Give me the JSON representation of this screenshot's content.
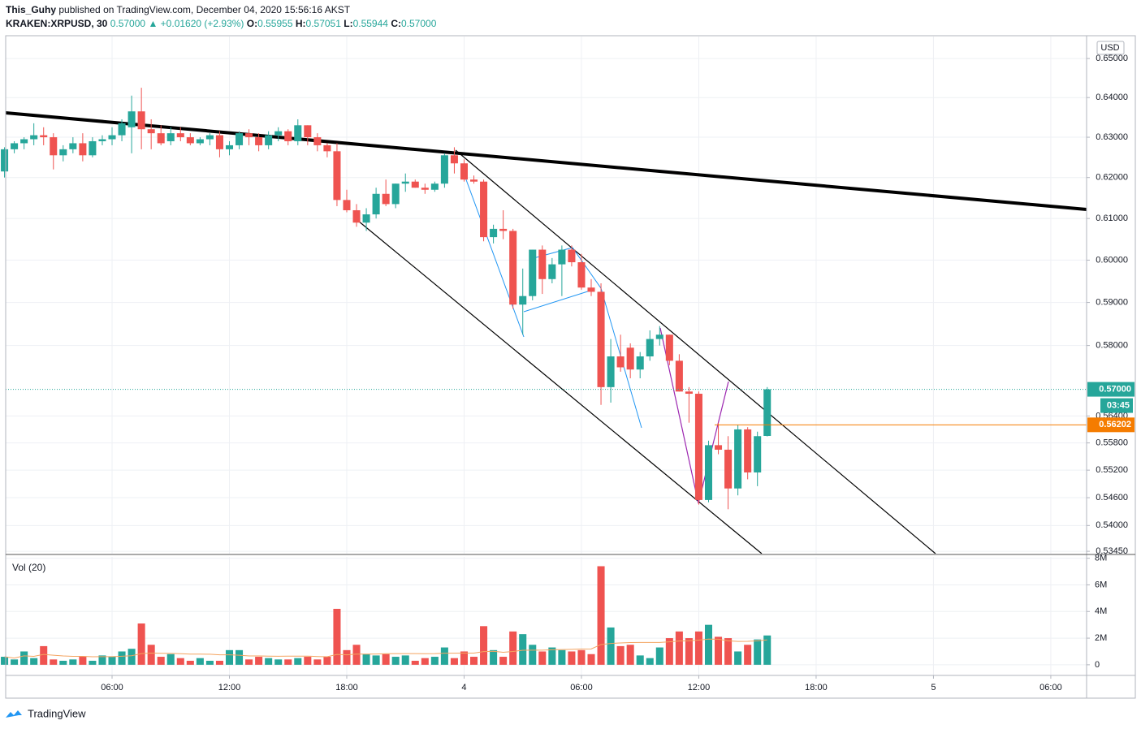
{
  "header": {
    "author": "This_Guhy",
    "published": "published on TradingView.com, December 04, 2020 15:56:16 AKST",
    "symbol": "KRAKEN:XRPUSD, 30",
    "last": "0.57000",
    "change": "+0.01620 (+2.93%)",
    "open_label": "O:",
    "open": "0.55955",
    "high_label": "H:",
    "high": "0.57051",
    "low_label": "L:",
    "low": "0.55944",
    "close_label": "C:",
    "close": "0.57000"
  },
  "footer": {
    "brand": "TradingView"
  },
  "chart_data": [
    {
      "type": "candlestick",
      "currency": "USD",
      "log_scale": true,
      "grid": true,
      "up_color": "#26a69a",
      "down_color": "#ef5350",
      "xlim": [
        0.56,
        55.83
      ],
      "ylim": [
        0.534,
        0.6557
      ],
      "xticks": [
        {
          "value": 6,
          "label": "06:00"
        },
        {
          "value": 12,
          "label": "12:00"
        },
        {
          "value": 18,
          "label": "18:00"
        },
        {
          "value": 24,
          "label": "4"
        },
        {
          "value": 30,
          "label": "06:00"
        },
        {
          "value": 36,
          "label": "12:00"
        },
        {
          "value": 42,
          "label": "18:00"
        },
        {
          "value": 48,
          "label": "5"
        },
        {
          "value": 54,
          "label": "06:00"
        }
      ],
      "yticks": [
        {
          "value": 0.65,
          "label": "0.65000"
        },
        {
          "value": 0.64,
          "label": "0.64000"
        },
        {
          "value": 0.63,
          "label": "0.63000"
        },
        {
          "value": 0.62,
          "label": "0.62000"
        },
        {
          "value": 0.61,
          "label": "0.61000"
        },
        {
          "value": 0.6,
          "label": "0.60000"
        },
        {
          "value": 0.59,
          "label": "0.59000"
        },
        {
          "value": 0.58,
          "label": "0.58000"
        },
        {
          "value": 0.564,
          "label": "0.56400"
        },
        {
          "value": 0.558,
          "label": "0.55800"
        },
        {
          "value": 0.552,
          "label": "0.55200"
        },
        {
          "value": 0.546,
          "label": "0.54600"
        },
        {
          "value": 0.54,
          "label": "0.54000"
        },
        {
          "value": 0.5345,
          "label": "0.53450"
        }
      ],
      "price_line": {
        "value": 0.57,
        "label": "0.57000",
        "color": "#26a69a"
      },
      "countdown": "03:45",
      "level_line": {
        "value": 0.56202,
        "label": "0.56202",
        "color": "#f57c00"
      },
      "x": [
        0.5,
        1,
        1.5,
        2,
        2.5,
        3,
        3.5,
        4,
        4.5,
        5,
        5.5,
        6,
        6.5,
        7,
        7.5,
        8,
        8.5,
        9,
        9.5,
        10,
        10.5,
        11,
        11.5,
        12,
        12.5,
        13,
        13.5,
        14,
        14.5,
        15,
        15.5,
        16,
        16.5,
        17,
        17.5,
        18,
        18.5,
        19,
        19.5,
        20,
        20.5,
        21,
        21.5,
        22,
        22.5,
        23,
        23.5,
        24,
        24.5,
        25,
        25.5,
        26,
        26.5,
        27,
        27.5,
        28,
        28.5,
        29,
        29.5,
        30,
        30.5,
        31,
        31.5,
        32,
        32.5,
        33,
        33.5,
        34,
        34.5,
        35,
        35.5,
        36,
        36.5,
        37,
        37.5,
        38,
        38.5,
        39,
        39.5
      ],
      "ohlc": [
        [
          0.6215,
          0.6275,
          0.62,
          0.627
        ],
        [
          0.627,
          0.629,
          0.626,
          0.6285
        ],
        [
          0.6285,
          0.63,
          0.627,
          0.6295
        ],
        [
          0.6295,
          0.6335,
          0.628,
          0.6305
        ],
        [
          0.6305,
          0.6325,
          0.628,
          0.63
        ],
        [
          0.63,
          0.631,
          0.622,
          0.6255
        ],
        [
          0.6255,
          0.628,
          0.624,
          0.627
        ],
        [
          0.627,
          0.63,
          0.626,
          0.6285
        ],
        [
          0.6285,
          0.631,
          0.624,
          0.6255
        ],
        [
          0.6255,
          0.63,
          0.625,
          0.629
        ],
        [
          0.629,
          0.6305,
          0.628,
          0.6295
        ],
        [
          0.6295,
          0.6325,
          0.628,
          0.6305
        ],
        [
          0.6305,
          0.6345,
          0.629,
          0.6335
        ],
        [
          0.6325,
          0.6405,
          0.626,
          0.6365
        ],
        [
          0.6365,
          0.6425,
          0.627,
          0.632
        ],
        [
          0.632,
          0.6345,
          0.627,
          0.631
        ],
        [
          0.631,
          0.633,
          0.628,
          0.6285
        ],
        [
          0.629,
          0.6325,
          0.628,
          0.631
        ],
        [
          0.631,
          0.6325,
          0.629,
          0.63
        ],
        [
          0.63,
          0.631,
          0.628,
          0.6285
        ],
        [
          0.6285,
          0.63,
          0.628,
          0.6295
        ],
        [
          0.6295,
          0.631,
          0.628,
          0.6305
        ],
        [
          0.6305,
          0.6315,
          0.625,
          0.627
        ],
        [
          0.627,
          0.629,
          0.6255,
          0.628
        ],
        [
          0.628,
          0.6315,
          0.627,
          0.631
        ],
        [
          0.631,
          0.632,
          0.628,
          0.63
        ],
        [
          0.63,
          0.631,
          0.6265,
          0.628
        ],
        [
          0.628,
          0.6315,
          0.627,
          0.6305
        ],
        [
          0.6305,
          0.6325,
          0.629,
          0.6315
        ],
        [
          0.6315,
          0.632,
          0.628,
          0.629
        ],
        [
          0.629,
          0.6345,
          0.628,
          0.633
        ],
        [
          0.633,
          0.633,
          0.628,
          0.63
        ],
        [
          0.63,
          0.631,
          0.6265,
          0.628
        ],
        [
          0.628,
          0.6285,
          0.625,
          0.6265
        ],
        [
          0.6265,
          0.6285,
          0.613,
          0.6145
        ],
        [
          0.6145,
          0.617,
          0.6115,
          0.612
        ],
        [
          0.612,
          0.6135,
          0.608,
          0.609
        ],
        [
          0.609,
          0.6125,
          0.607,
          0.611
        ],
        [
          0.611,
          0.6175,
          0.61,
          0.616
        ],
        [
          0.616,
          0.6195,
          0.613,
          0.6135
        ],
        [
          0.6135,
          0.6185,
          0.6125,
          0.6185
        ],
        [
          0.6185,
          0.621,
          0.6165,
          0.619
        ],
        [
          0.619,
          0.6195,
          0.6175,
          0.6175
        ],
        [
          0.6175,
          0.6185,
          0.616,
          0.617
        ],
        [
          0.617,
          0.619,
          0.6165,
          0.6185
        ],
        [
          0.6185,
          0.626,
          0.6175,
          0.6255
        ],
        [
          0.6255,
          0.6275,
          0.621,
          0.6235
        ],
        [
          0.6235,
          0.6245,
          0.619,
          0.6195
        ],
        [
          0.6195,
          0.6205,
          0.6185,
          0.619
        ],
        [
          0.619,
          0.6195,
          0.6045,
          0.6055
        ],
        [
          0.6055,
          0.6085,
          0.604,
          0.6075
        ],
        [
          0.6075,
          0.612,
          0.605,
          0.607
        ],
        [
          0.607,
          0.6075,
          0.5885,
          0.5895
        ],
        [
          0.5895,
          0.598,
          0.5825,
          0.5915
        ],
        [
          0.5915,
          0.6025,
          0.5905,
          0.6025
        ],
        [
          0.6025,
          0.6035,
          0.592,
          0.5955
        ],
        [
          0.5955,
          0.6005,
          0.5945,
          0.599
        ],
        [
          0.599,
          0.6035,
          0.5915,
          0.6025
        ],
        [
          0.6025,
          0.6035,
          0.5985,
          0.5995
        ],
        [
          0.5995,
          0.6015,
          0.593,
          0.5935
        ],
        [
          0.5935,
          0.5955,
          0.5915,
          0.5925
        ],
        [
          0.5925,
          0.5945,
          0.5665,
          0.5705
        ],
        [
          0.5705,
          0.5815,
          0.567,
          0.5775
        ],
        [
          0.5775,
          0.5825,
          0.574,
          0.575
        ],
        [
          0.5795,
          0.5805,
          0.5725,
          0.5745
        ],
        [
          0.5745,
          0.5785,
          0.5725,
          0.5775
        ],
        [
          0.5775,
          0.5835,
          0.5765,
          0.5815
        ],
        [
          0.5815,
          0.5845,
          0.58,
          0.5825
        ],
        [
          0.5825,
          0.5825,
          0.5755,
          0.5765
        ],
        [
          0.5765,
          0.578,
          0.5695,
          0.5695
        ],
        [
          0.5695,
          0.5705,
          0.5625,
          0.569
        ],
        [
          0.569,
          0.5695,
          0.5445,
          0.5455
        ],
        [
          0.5455,
          0.5585,
          0.545,
          0.5575
        ],
        [
          0.5575,
          0.5625,
          0.5555,
          0.5565
        ],
        [
          0.5565,
          0.5595,
          0.5435,
          0.548
        ],
        [
          0.548,
          0.562,
          0.5465,
          0.561
        ],
        [
          0.561,
          0.5615,
          0.55,
          0.5515
        ],
        [
          0.5515,
          0.5605,
          0.5485,
          0.5595
        ],
        [
          0.55955,
          0.57051,
          0.55944,
          0.57
        ]
      ]
    },
    {
      "type": "bar",
      "title": "Vol (20)",
      "ylim": [
        -800000,
        8100000
      ],
      "yticks": [
        {
          "value": 8000000,
          "label": "8M"
        },
        {
          "value": 6000000,
          "label": "6M"
        },
        {
          "value": 4000000,
          "label": "4M"
        },
        {
          "value": 2000000,
          "label": "2M"
        },
        0
      ],
      "ma_color": "#f4a460",
      "values": [
        600000,
        400000,
        1000000,
        500000,
        1400000,
        400000,
        300000,
        400000,
        600000,
        300000,
        700000,
        600000,
        1000000,
        1200000,
        3100000,
        1500000,
        600000,
        800000,
        500000,
        300000,
        500000,
        300000,
        300000,
        1100000,
        1100000,
        400000,
        600000,
        500000,
        400000,
        400000,
        500000,
        600000,
        400000,
        600000,
        4200000,
        1100000,
        1500000,
        800000,
        700000,
        800000,
        600000,
        700000,
        300000,
        500000,
        600000,
        1300000,
        500000,
        1000000,
        600000,
        2900000,
        1100000,
        600000,
        2500000,
        2300000,
        1500000,
        1000000,
        1300000,
        1100000,
        1000000,
        1100000,
        800000,
        7400000,
        2800000,
        1400000,
        1500000,
        700000,
        500000,
        1300000,
        2000000,
        2500000,
        2000000,
        2500000,
        3000000,
        2100000,
        2000000,
        1000000,
        1500000,
        1900000,
        2200000
      ],
      "moving_average": [
        600000,
        500000,
        670000,
        630000,
        780000,
        720000,
        660000,
        630000,
        630000,
        600000,
        610000,
        610000,
        640000,
        680000,
        840000,
        880000,
        860000,
        850000,
        830000,
        800000,
        800000,
        790000,
        750000,
        750000,
        720000,
        660000,
        660000,
        650000,
        640000,
        650000,
        650000,
        650000,
        620000,
        600000,
        780000,
        750000,
        800000,
        800000,
        810000,
        830000,
        840000,
        840000,
        840000,
        830000,
        840000,
        870000,
        870000,
        880000,
        880000,
        990000,
        1010000,
        940000,
        1000000,
        1090000,
        1100000,
        1100000,
        1130000,
        1140000,
        1160000,
        1180000,
        1190000,
        1520000,
        1600000,
        1640000,
        1670000,
        1680000,
        1680000,
        1680000,
        1720000,
        1780000,
        1800000,
        1850000,
        1930000,
        1920000,
        1800000,
        1750000,
        1760000,
        1800000,
        1870000
      ]
    }
  ]
}
